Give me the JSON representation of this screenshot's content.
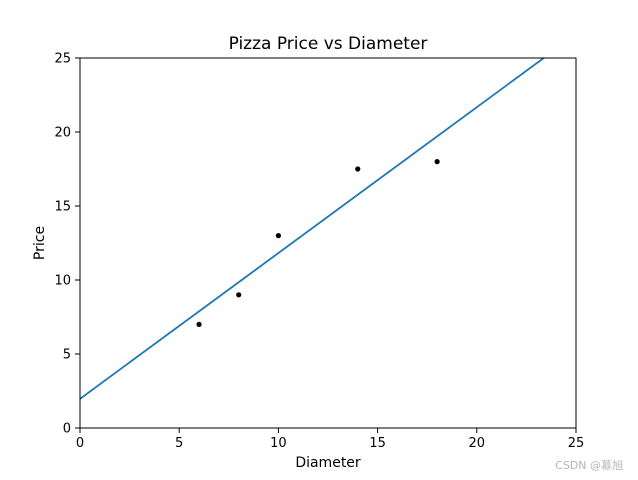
{
  "chart_data": {
    "type": "scatter",
    "title": "Pizza Price vs Diameter",
    "xlabel": "Diameter",
    "ylabel": "Price",
    "xlim": [
      0,
      25
    ],
    "ylim": [
      0,
      25
    ],
    "xticks": [
      0,
      5,
      10,
      15,
      20,
      25
    ],
    "yticks": [
      0,
      5,
      10,
      15,
      20,
      25
    ],
    "grid": false,
    "points": {
      "x": [
        6,
        8,
        10,
        14,
        18
      ],
      "y": [
        7,
        9,
        13,
        17.5,
        18
      ],
      "color": "#000000"
    },
    "fit_line": {
      "x": [
        0,
        25
      ],
      "y": [
        1.97,
        26.6
      ],
      "color": "#1f77b4"
    }
  },
  "watermark": "CSDN @慕旭"
}
